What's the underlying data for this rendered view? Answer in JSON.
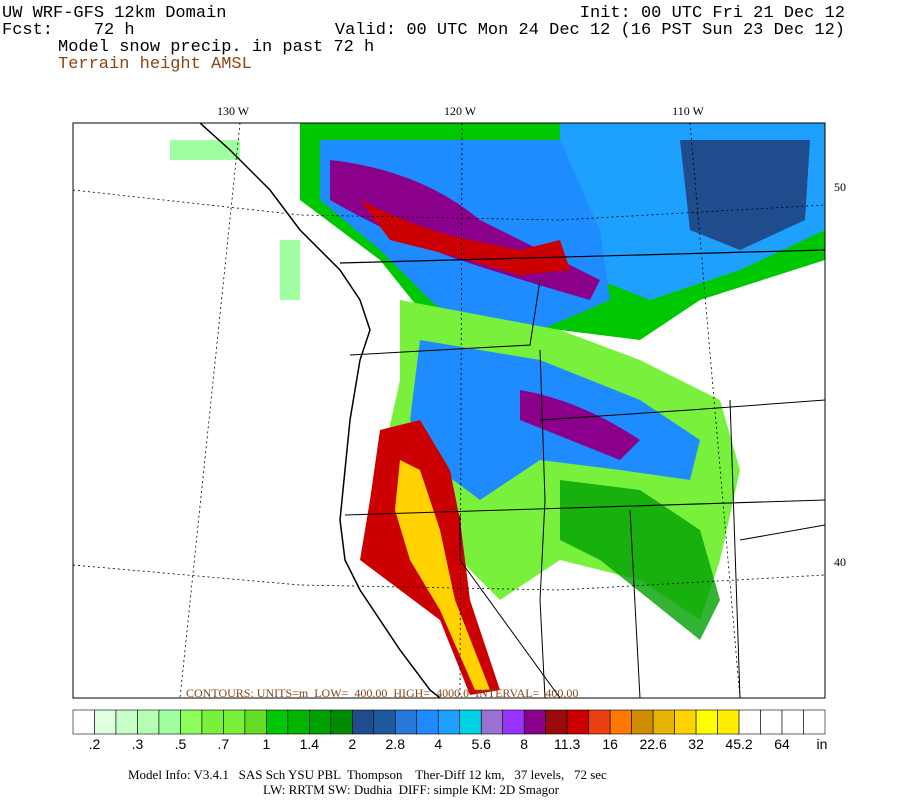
{
  "header": {
    "title": "UW WRF-GFS 12km Domain",
    "forecast": "Fcst:    72 h",
    "field": "Model snow precip. in past 72 h",
    "contours_field": "Terrain height AMSL",
    "init": "Init: 00 UTC Fri 21 Dec 12",
    "valid": "Valid: 00 UTC Mon 24 Dec 12 (16 PST Sun 23 Dec 12)"
  },
  "map": {
    "longitude_labels": [
      "130 W",
      "120 W",
      "110 W"
    ],
    "latitude_labels": [
      "50",
      "40"
    ],
    "contour_info": "CONTOURS: UNITS=m  LOW=  400.00  HIGH=  4000.0  INTERVAL=  400.00"
  },
  "colorbar": {
    "labels": [
      ".2",
      ".3",
      ".5",
      ".7",
      "1",
      "1.4",
      "2",
      "2.8",
      "4",
      "5.6",
      "8",
      "11.3",
      "16",
      "22.6",
      "32",
      "45.2",
      "64"
    ],
    "unit": "in",
    "colors": [
      "#ffffff",
      "#e0ffe0",
      "#c8ffc8",
      "#b4ffb4",
      "#a0ffa0",
      "#8cff5a",
      "#78f03c",
      "#78f03c",
      "#64dc28",
      "#00c800",
      "#00b400",
      "#00a000",
      "#008c00",
      "#1e4c8c",
      "#1e5aa0",
      "#2878dc",
      "#1e8cff",
      "#1ea0ff",
      "#00d2e6",
      "#9a70d0",
      "#9933ff",
      "#8b008b",
      "#9b0a0a",
      "#cc0000",
      "#e84010",
      "#ff7800",
      "#d08c00",
      "#e6b400",
      "#ffd200",
      "#ffff00",
      "#ffee00",
      "#ffffff",
      "#ffffff",
      "#ffffff",
      "#ffffff"
    ]
  },
  "footer": [
    "Model Info: V3.4.1   SAS Sch YSU PBL  Thompson    Ther-Diff 12 km,   37 levels,   72 sec",
    "LW: RRTM SW: Dudhia  DIFF: simple KM: 2D Smagor"
  ]
}
